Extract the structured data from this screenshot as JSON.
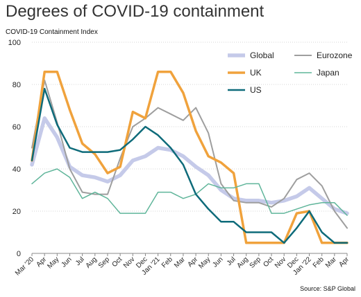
{
  "chart_data": {
    "type": "line",
    "title": "Degrees of COVID-19 containment",
    "ylabel": "COVID-19 Containment Index",
    "source": "Source: S&P Global",
    "ylim": [
      0,
      100
    ],
    "yticks": [
      "0",
      "20",
      "40",
      "60",
      "80",
      "100"
    ],
    "categories": [
      "Mar '20",
      "Apr",
      "May",
      "Jun",
      "Jul",
      "Aug",
      "Sep",
      "Oct",
      "Nov",
      "Dec",
      "Jan '21",
      "Feb",
      "Mar",
      "Apr",
      "May",
      "Jun",
      "Jul",
      "Aug",
      "Sep",
      "Oct",
      "Nov",
      "Dec",
      "Jan '22",
      "Feb",
      "Mar",
      "Apr"
    ],
    "grid": true,
    "legend_position": "top-right",
    "series": [
      {
        "name": "Global",
        "color": "#c5cae9",
        "values": [
          42,
          64,
          55,
          41,
          37,
          36,
          34,
          37,
          44,
          46,
          50,
          49,
          46,
          41,
          37,
          30,
          26,
          25,
          25,
          24,
          25,
          27,
          31,
          26,
          21,
          19
        ]
      },
      {
        "name": "Eurozone",
        "color": "#9e9e9e",
        "values": [
          50,
          82,
          62,
          40,
          29,
          28,
          28,
          45,
          60,
          64,
          69,
          66,
          63,
          69,
          57,
          33,
          25,
          24,
          24,
          22,
          26,
          35,
          38,
          32,
          20,
          12
        ]
      },
      {
        "name": "UK",
        "color": "#f0a23c",
        "values": [
          44,
          86,
          86,
          68,
          52,
          47,
          38,
          41,
          67,
          64,
          86,
          86,
          76,
          58,
          46,
          43,
          38,
          5,
          5,
          5,
          5,
          19,
          20,
          5,
          5,
          5
        ]
      },
      {
        "name": "Japan",
        "color": "#5fb59a",
        "values": [
          33,
          38,
          40,
          36,
          26,
          29,
          26,
          19,
          19,
          19,
          29,
          29,
          26,
          28,
          33,
          31,
          31,
          33,
          33,
          19,
          19,
          21,
          23,
          24,
          24,
          18
        ]
      },
      {
        "name": "US",
        "color": "#0e6b7a",
        "values": [
          44,
          78,
          61,
          50,
          48,
          48,
          48,
          49,
          54,
          60,
          56,
          50,
          42,
          28,
          21,
          15,
          15,
          10,
          10,
          10,
          5,
          12,
          20,
          10,
          5,
          5
        ]
      }
    ]
  }
}
